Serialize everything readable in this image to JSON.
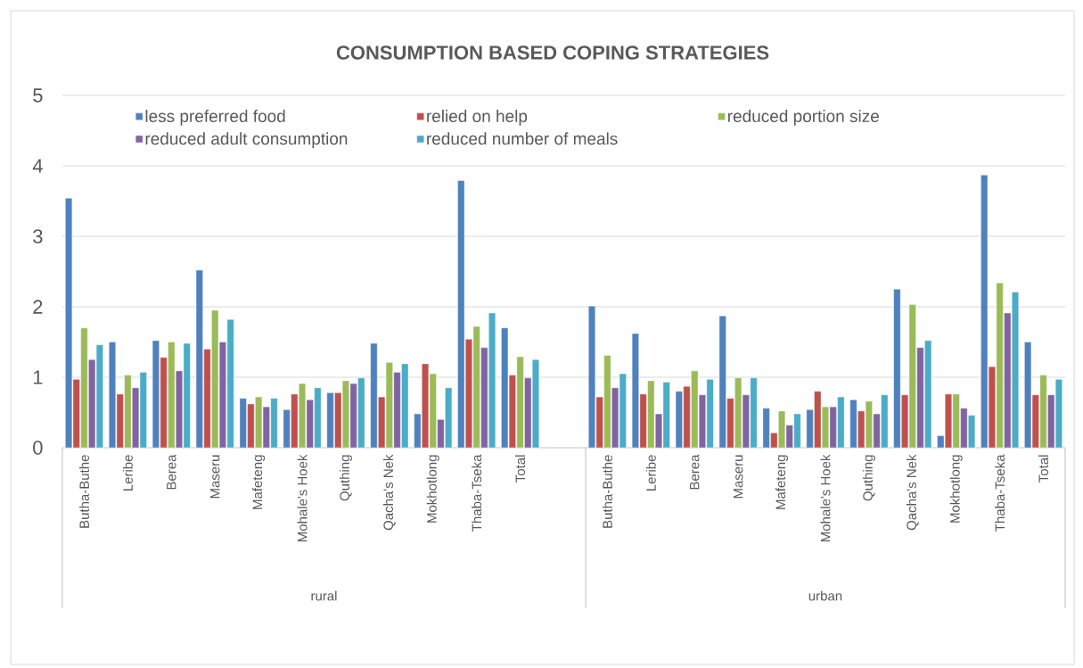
{
  "chart_data": {
    "type": "bar",
    "title": "CONSUMPTION BASED COPING STRATEGIES",
    "categories": [
      "Butha-Buthe",
      "Leribe",
      "Berea",
      "Maseru",
      "Mafeteng",
      "Mohale's Hoek",
      "Quthing",
      "Qacha's Nek",
      "Mokhotlong",
      "Thaba-Tseka",
      "Total",
      null,
      "Butha-Buthe",
      "Leribe",
      "Berea",
      "Maseru",
      "Mafeteng",
      "Mohale's Hoek",
      "Quthing",
      "Qacha's Nek",
      "Mokhotlong",
      "Thaba-Tseka",
      "Total"
    ],
    "series": [
      {
        "name": "less preferred food",
        "color": "#4f81bd",
        "values": [
          3.54,
          1.5,
          1.52,
          2.52,
          0.7,
          0.54,
          0.78,
          1.48,
          0.48,
          3.79,
          1.7,
          null,
          2.01,
          1.62,
          0.8,
          1.87,
          0.56,
          0.54,
          0.68,
          2.25,
          0.17,
          3.87,
          1.5
        ]
      },
      {
        "name": "relied on help",
        "color": "#c0504d",
        "values": [
          0.97,
          0.76,
          1.28,
          1.4,
          0.62,
          0.76,
          0.78,
          0.72,
          1.19,
          1.54,
          1.03,
          null,
          0.72,
          0.76,
          0.87,
          0.7,
          0.21,
          0.8,
          0.52,
          0.75,
          0.76,
          1.15,
          0.75
        ]
      },
      {
        "name": "reduced portion size",
        "color": "#9bbb59",
        "values": [
          1.7,
          1.03,
          1.5,
          1.95,
          0.72,
          0.91,
          0.95,
          1.21,
          1.05,
          1.72,
          1.29,
          null,
          1.31,
          0.95,
          1.09,
          0.99,
          0.52,
          0.58,
          0.66,
          2.03,
          0.76,
          2.34,
          1.03
        ]
      },
      {
        "name": "reduced adult consumption",
        "color": "#8064a2",
        "values": [
          1.25,
          0.85,
          1.09,
          1.5,
          0.58,
          0.68,
          0.91,
          1.07,
          0.4,
          1.42,
          0.99,
          null,
          0.85,
          0.48,
          0.75,
          0.75,
          0.32,
          0.58,
          0.48,
          1.42,
          0.56,
          1.91,
          0.75
        ]
      },
      {
        "name": "reduced number of meals",
        "color": "#4bacc6",
        "values": [
          1.46,
          1.07,
          1.48,
          1.82,
          0.7,
          0.85,
          0.99,
          1.19,
          0.85,
          1.91,
          1.25,
          null,
          1.05,
          0.93,
          0.97,
          0.99,
          0.48,
          0.72,
          0.75,
          1.52,
          0.46,
          2.21,
          0.97
        ]
      }
    ],
    "ylim": [
      0,
      5
    ],
    "yticks": [
      0,
      1,
      2,
      3,
      4,
      5
    ],
    "grid": "y",
    "legend": "top",
    "annotations": [
      "rural",
      "urban"
    ]
  }
}
